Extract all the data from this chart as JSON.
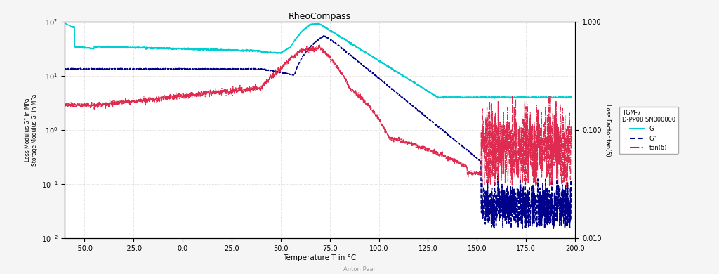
{
  "title": "RheoCompass",
  "xlabel": "Temperature T in °C",
  "ylabel_left": "Loss Modulus G\" in MPa\nStorage Modulus G' in MPa",
  "ylabel_right": "Loss Factor tan(δ)",
  "x_min": -60.0,
  "x_max": 200.0,
  "y_left_min": 0.01,
  "y_left_max": 100,
  "y_right_min": 0.01,
  "y_right_max": 1,
  "x_ticks": [
    -50.0,
    -25.0,
    0.0,
    25.0,
    50.0,
    75.0,
    100.0,
    125.0,
    150.0,
    175.0,
    200.0
  ],
  "legend_title1": "TGM-7",
  "legend_title2": "D-PP08 SN000000",
  "legend_entries": [
    "G'",
    "G\"",
    "tan(δ)"
  ],
  "color_cyan": "#00CED1",
  "color_blue": "#00008B",
  "color_red": "#DC143C",
  "bg_color": "#f5f5f5",
  "plot_bg_color": "#ffffff"
}
